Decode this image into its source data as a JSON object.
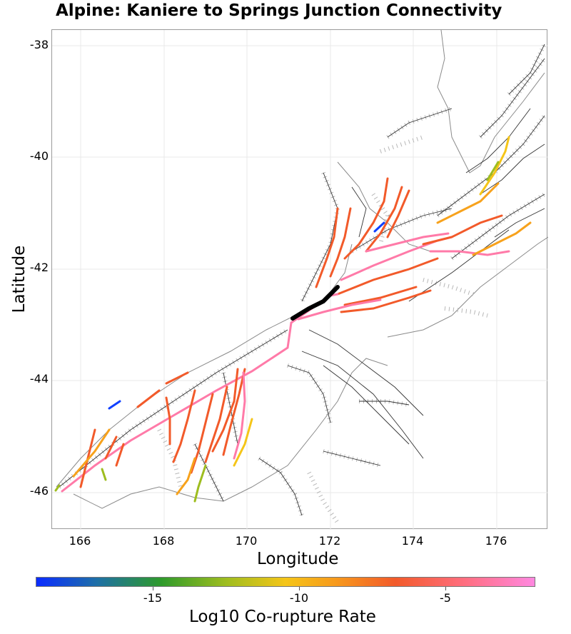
{
  "title": "Alpine: Kaniere to Springs Junction Connectivity",
  "axes": {
    "xlabel": "Longitude",
    "ylabel": "Latitude",
    "xticks": [
      "166",
      "168",
      "170",
      "172",
      "174",
      "176"
    ],
    "yticks": [
      "-38",
      "-40",
      "-42",
      "-44",
      "-46"
    ]
  },
  "colorbar": {
    "label": "Log10 Co-rupture Rate",
    "ticks": [
      "-15",
      "-10",
      "-5"
    ],
    "range": [
      -17.5,
      -3.5
    ]
  },
  "colors": {
    "selected": "#000000",
    "pink": "#ff7aa8",
    "red": "#f25a2a",
    "orange": "#f7a21c",
    "yellow": "#f5c518",
    "green": "#9ebd1f",
    "blue": "#1040ff",
    "fault_trace": "#333333",
    "fault_dip": "#aaaaaa",
    "coast": "#888888"
  }
}
